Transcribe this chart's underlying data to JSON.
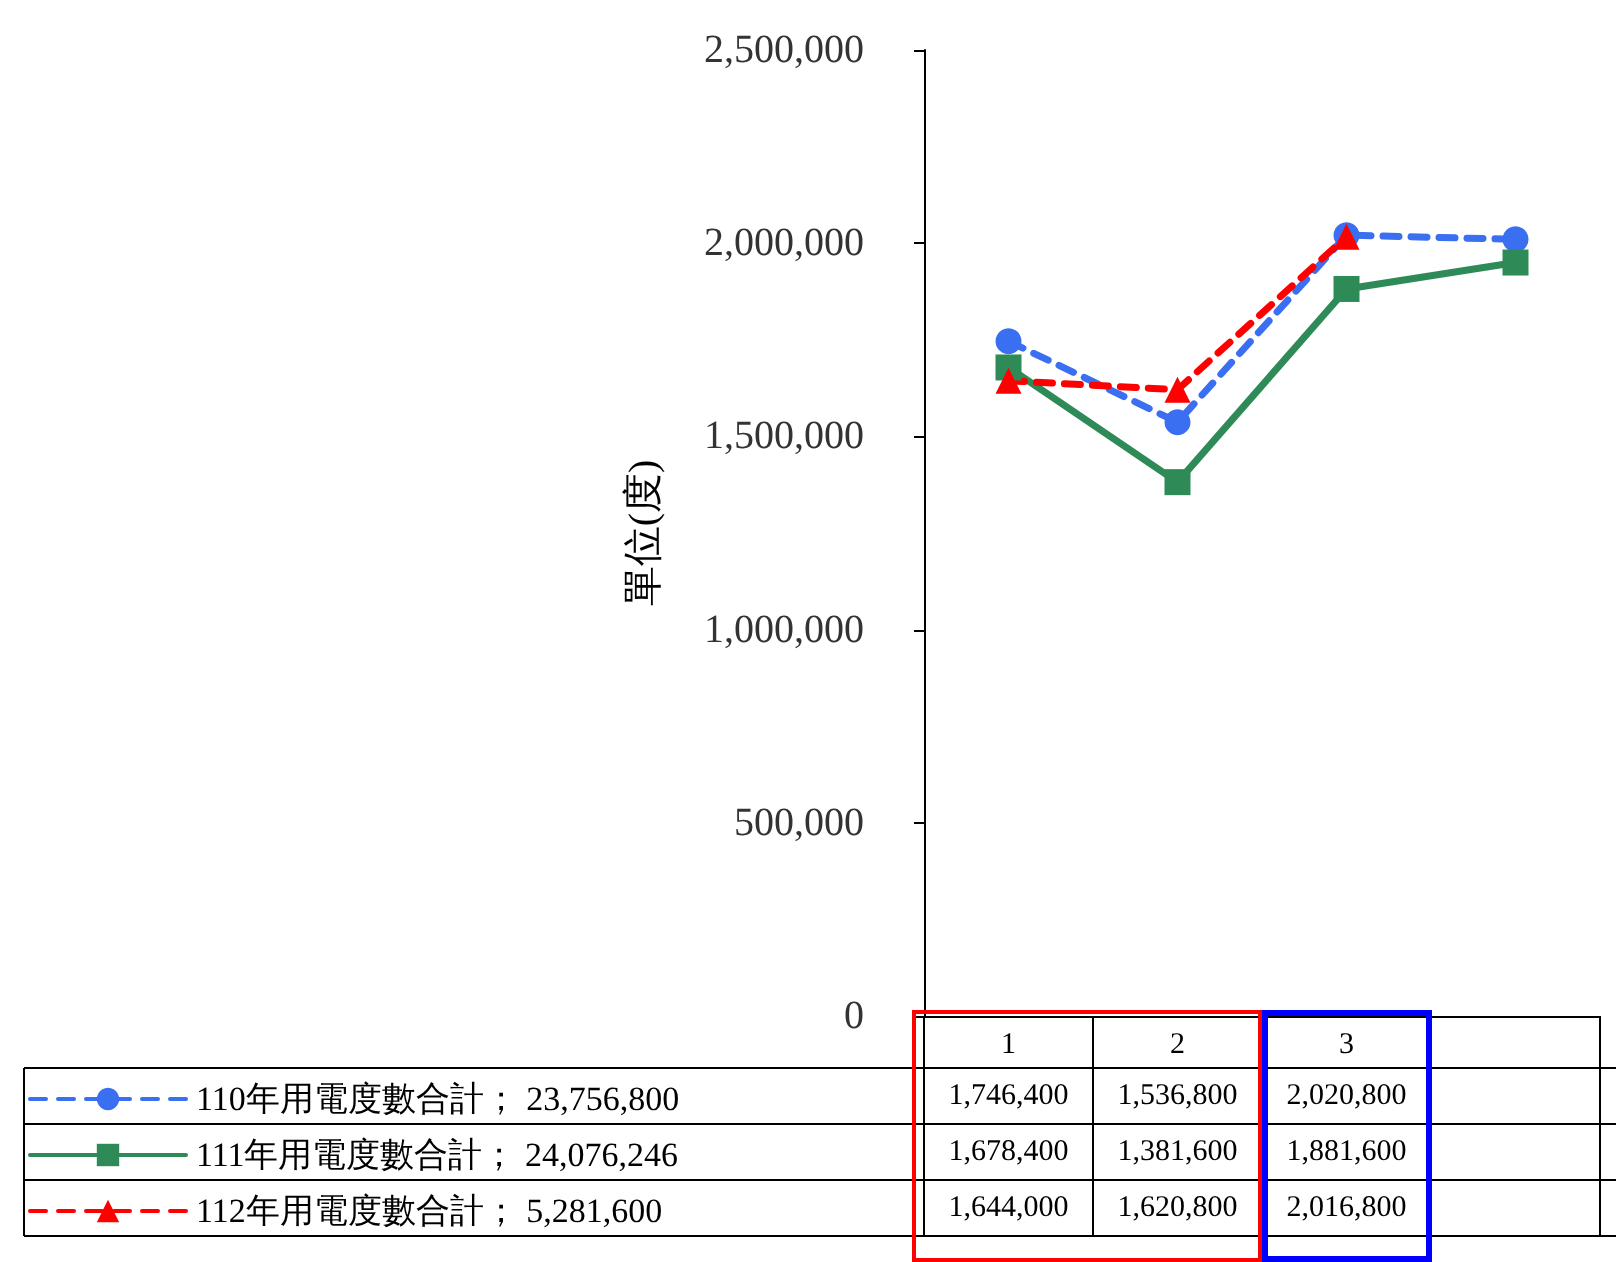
{
  "chart_data": {
    "type": "line",
    "ylabel": "單位(度)",
    "categories": [
      "1",
      "2",
      "3",
      null
    ],
    "series": [
      {
        "name": "110年用電度數合計； 23,756,800",
        "color": "#3b6ff2",
        "marker": "circle",
        "line_style": "dashed",
        "values": [
          1746400,
          1536800,
          2020800,
          2010000
        ],
        "value_labels": [
          "1,746,400",
          "1,536,800",
          "2,020,800",
          null
        ]
      },
      {
        "name": "111年用電度數合計； 24,076,246",
        "color": "#2e8b57",
        "marker": "square",
        "line_style": "solid",
        "values": [
          1678400,
          1381600,
          1881600,
          1950000
        ],
        "value_labels": [
          "1,678,400",
          "1,381,600",
          "1,881,600",
          null
        ]
      },
      {
        "name": "112年用電度數合計； 5,281,600",
        "color": "#ff0000",
        "marker": "triangle",
        "line_style": "dashed",
        "values": [
          1644000,
          1620800,
          2016800,
          null
        ],
        "value_labels": [
          "1,644,000",
          "1,620,800",
          "2,016,800",
          null
        ]
      }
    ],
    "ylim": [
      0,
      2500000
    ],
    "yticks": [
      0,
      {
        "value": 500000,
        "label": "500,000"
      },
      {
        "value": 1000000,
        "label": "1,000,000"
      },
      {
        "value": 1500000,
        "label": "1,500,000"
      },
      {
        "value": 2000000,
        "label": "2,000,000"
      },
      {
        "value": 2500000,
        "label": "2,500,000"
      }
    ],
    "grid": false,
    "legend": "bottom left"
  }
}
